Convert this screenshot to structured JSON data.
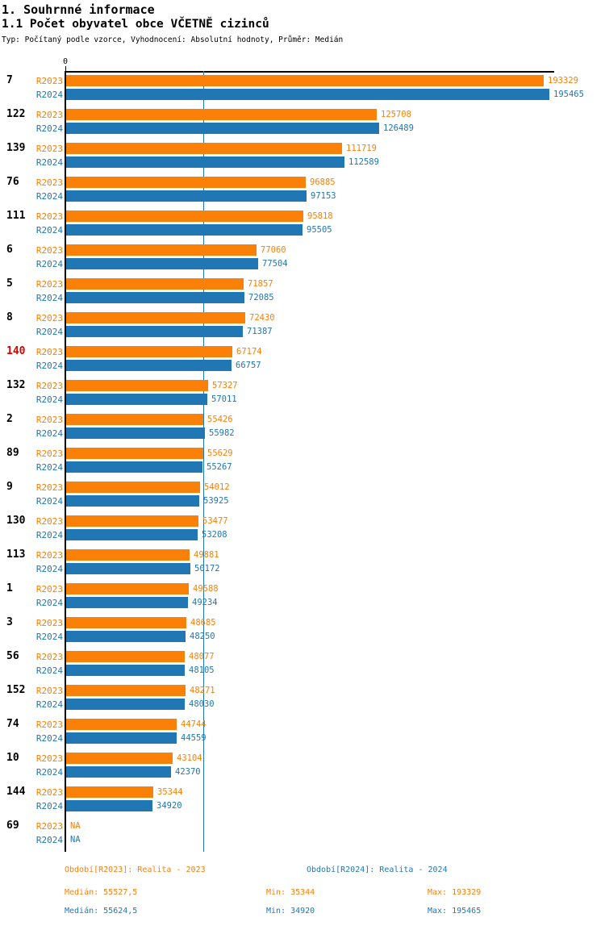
{
  "header": {
    "title": "1. Souhrnné informace",
    "subtitle": "1.1 Počet obyvatel obce VČETNĚ cizinců",
    "meta": "Typ: Počítaný podle vzorce, Vyhodnocení: Absolutní hodnoty, Průměr: Medián"
  },
  "colors": {
    "orange": "#FB8008",
    "blue": "#2077B4",
    "red": "#DC0000",
    "axis": "#000000"
  },
  "chart_data": {
    "type": "bar",
    "orientation": "horizontal",
    "title": "1.1 Počet obyvatel obce VČETNĚ cizinců",
    "xlabel": "",
    "ylabel": "",
    "x_axis": {
      "zero_label": "0",
      "min": 0,
      "max_extent": 195465,
      "grid": false
    },
    "categories": [
      "7",
      "122",
      "139",
      "76",
      "111",
      "6",
      "5",
      "8",
      "140",
      "132",
      "2",
      "89",
      "9",
      "130",
      "113",
      "1",
      "3",
      "56",
      "152",
      "74",
      "10",
      "144",
      "69"
    ],
    "highlighted_category": "140",
    "na_text": "NA",
    "series": [
      {
        "name": "R2023",
        "values": [
          193329,
          125708,
          111719,
          96885,
          95818,
          77060,
          71857,
          72430,
          67174,
          57327,
          55426,
          55629,
          54012,
          53477,
          49881,
          49588,
          48685,
          48077,
          48271,
          44744,
          43104,
          35344,
          null
        ],
        "median": 55527.5,
        "min": 35344,
        "max": 193329
      },
      {
        "name": "R2024",
        "values": [
          195465,
          126489,
          112589,
          97153,
          95505,
          77504,
          72085,
          71387,
          66757,
          57011,
          55982,
          55267,
          53925,
          53208,
          50172,
          49234,
          48250,
          48105,
          48030,
          44559,
          42370,
          34920,
          null
        ],
        "median": 55624.5,
        "min": 34920,
        "max": 195465
      }
    ],
    "median_line_value": 55624.5,
    "legend_position": "none"
  },
  "footer": {
    "periods": [
      {
        "label": "Období[R2023]: Realita - 2023"
      },
      {
        "label": "Období[R2024]: Realita - 2024"
      }
    ],
    "stats": [
      {
        "median": "Medián: 55527,5",
        "min": "Min: 35344",
        "max": "Max: 193329"
      },
      {
        "median": "Medián: 55624,5",
        "min": "Min: 34920",
        "max": "Max: 195465"
      }
    ]
  }
}
